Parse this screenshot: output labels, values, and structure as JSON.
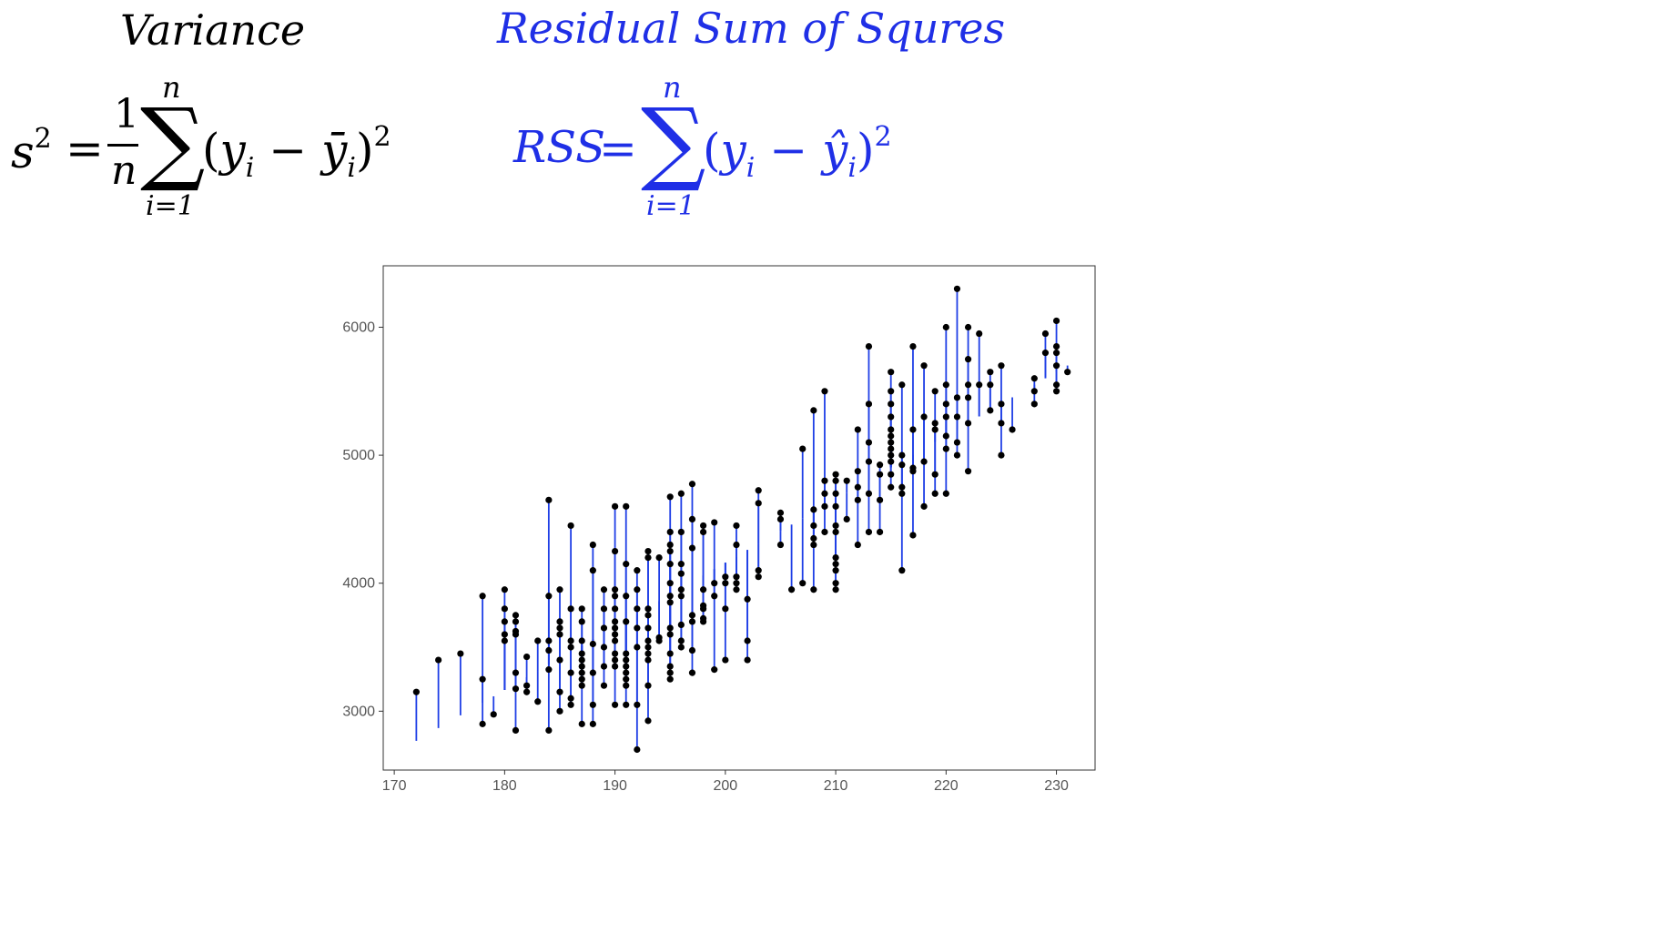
{
  "formulas": {
    "variance": {
      "label": "Variance",
      "lhs": "s",
      "lhs_sup": "2",
      "equals": "=",
      "frac_num": "1",
      "frac_den": "n",
      "sum_symbol": "∑",
      "sum_upper": "n",
      "sum_lower": "i=1",
      "open_paren": "(",
      "y": "y",
      "sub_i": "i",
      "minus": "−",
      "ybar": "ȳ",
      "sub_i2": "i",
      "close_paren": ")",
      "power": "2",
      "color": "#000000"
    },
    "rss": {
      "label": "Residual Sum of Squres",
      "lhs": "RSS",
      "equals": "=",
      "sum_symbol": "∑",
      "sum_upper": "n",
      "sum_lower": "i=1",
      "open_paren": "(",
      "y": "y",
      "sub_i": "i",
      "minus": "−",
      "yhat": "ŷ",
      "sub_i2": "i",
      "close_paren": ")",
      "power": "2",
      "color": "#1f2fe6"
    }
  },
  "chart_data": {
    "type": "scatter",
    "title": "",
    "xlabel": "",
    "ylabel": "",
    "xlim": [
      169,
      233.5
    ],
    "ylim": [
      2540,
      6480
    ],
    "x_ticks": [
      170,
      180,
      190,
      200,
      210,
      220,
      230
    ],
    "y_ticks": [
      3000,
      4000,
      5000,
      6000
    ],
    "grid": false,
    "point_color": "#000000",
    "residual_color": "#1f3fe6",
    "fitted_line": {
      "intercept": -5780,
      "slope": 49.7
    },
    "points": [
      [
        172,
        3150
      ],
      [
        174,
        3400
      ],
      [
        176,
        3450
      ],
      [
        178,
        3900
      ],
      [
        178,
        3250
      ],
      [
        178,
        2900
      ],
      [
        179,
        2975
      ],
      [
        180,
        3950
      ],
      [
        180,
        3800
      ],
      [
        180,
        3700
      ],
      [
        180,
        3600
      ],
      [
        180,
        3550
      ],
      [
        181,
        3750
      ],
      [
        181,
        3700
      ],
      [
        181,
        3625
      ],
      [
        181,
        3600
      ],
      [
        181,
        3300
      ],
      [
        181,
        3175
      ],
      [
        181,
        2850
      ],
      [
        182,
        3425
      ],
      [
        182,
        3200
      ],
      [
        182,
        3150
      ],
      [
        183,
        3550
      ],
      [
        183,
        3075
      ],
      [
        184,
        4650
      ],
      [
        184,
        3900
      ],
      [
        184,
        3550
      ],
      [
        184,
        3475
      ],
      [
        184,
        3325
      ],
      [
        184,
        2850
      ],
      [
        185,
        3950
      ],
      [
        185,
        3700
      ],
      [
        185,
        3650
      ],
      [
        185,
        3600
      ],
      [
        185,
        3400
      ],
      [
        185,
        3150
      ],
      [
        185,
        3000
      ],
      [
        186,
        4450
      ],
      [
        186,
        3800
      ],
      [
        186,
        3550
      ],
      [
        186,
        3500
      ],
      [
        186,
        3300
      ],
      [
        186,
        3100
      ],
      [
        186,
        3050
      ],
      [
        187,
        3800
      ],
      [
        187,
        3700
      ],
      [
        187,
        3550
      ],
      [
        187,
        3450
      ],
      [
        187,
        3400
      ],
      [
        187,
        3350
      ],
      [
        187,
        3300
      ],
      [
        187,
        3250
      ],
      [
        187,
        3200
      ],
      [
        187,
        2900
      ],
      [
        188,
        4300
      ],
      [
        188,
        4100
      ],
      [
        188,
        3525
      ],
      [
        188,
        3300
      ],
      [
        188,
        3050
      ],
      [
        188,
        2900
      ],
      [
        189,
        3950
      ],
      [
        189,
        3800
      ],
      [
        189,
        3650
      ],
      [
        189,
        3500
      ],
      [
        189,
        3350
      ],
      [
        189,
        3200
      ],
      [
        190,
        4600
      ],
      [
        190,
        4250
      ],
      [
        190,
        3950
      ],
      [
        190,
        3900
      ],
      [
        190,
        3800
      ],
      [
        190,
        3700
      ],
      [
        190,
        3650
      ],
      [
        190,
        3600
      ],
      [
        190,
        3550
      ],
      [
        190,
        3450
      ],
      [
        190,
        3400
      ],
      [
        190,
        3350
      ],
      [
        190,
        3050
      ],
      [
        191,
        4600
      ],
      [
        191,
        4150
      ],
      [
        191,
        3900
      ],
      [
        191,
        3700
      ],
      [
        191,
        3450
      ],
      [
        191,
        3400
      ],
      [
        191,
        3350
      ],
      [
        191,
        3300
      ],
      [
        191,
        3250
      ],
      [
        191,
        3200
      ],
      [
        191,
        3050
      ],
      [
        192,
        4100
      ],
      [
        192,
        3950
      ],
      [
        192,
        3800
      ],
      [
        192,
        3650
      ],
      [
        192,
        3500
      ],
      [
        192,
        3050
      ],
      [
        192,
        2700
      ],
      [
        193,
        4250
      ],
      [
        193,
        4200
      ],
      [
        193,
        3800
      ],
      [
        193,
        3750
      ],
      [
        193,
        3650
      ],
      [
        193,
        3550
      ],
      [
        193,
        3500
      ],
      [
        193,
        3450
      ],
      [
        193,
        3400
      ],
      [
        193,
        3200
      ],
      [
        193,
        2925
      ],
      [
        194,
        4200
      ],
      [
        194,
        3575
      ],
      [
        194,
        3550
      ],
      [
        195,
        4675
      ],
      [
        195,
        4400
      ],
      [
        195,
        4300
      ],
      [
        195,
        4250
      ],
      [
        195,
        4150
      ],
      [
        195,
        4000
      ],
      [
        195,
        3900
      ],
      [
        195,
        3850
      ],
      [
        195,
        3650
      ],
      [
        195,
        3600
      ],
      [
        195,
        3450
      ],
      [
        195,
        3350
      ],
      [
        195,
        3300
      ],
      [
        195,
        3250
      ],
      [
        196,
        4700
      ],
      [
        196,
        4400
      ],
      [
        196,
        4150
      ],
      [
        196,
        4075
      ],
      [
        196,
        3950
      ],
      [
        196,
        3900
      ],
      [
        196,
        3675
      ],
      [
        196,
        3550
      ],
      [
        196,
        3500
      ],
      [
        197,
        4775
      ],
      [
        197,
        4500
      ],
      [
        197,
        4275
      ],
      [
        197,
        3750
      ],
      [
        197,
        3700
      ],
      [
        197,
        3475
      ],
      [
        197,
        3300
      ],
      [
        198,
        4450
      ],
      [
        198,
        4400
      ],
      [
        198,
        3950
      ],
      [
        198,
        3825
      ],
      [
        198,
        3800
      ],
      [
        198,
        3725
      ],
      [
        198,
        3700
      ],
      [
        199,
        4475
      ],
      [
        199,
        4000
      ],
      [
        199,
        3900
      ],
      [
        199,
        3325
      ],
      [
        200,
        4050
      ],
      [
        200,
        4000
      ],
      [
        200,
        3800
      ],
      [
        200,
        3400
      ],
      [
        201,
        4450
      ],
      [
        201,
        4300
      ],
      [
        201,
        4050
      ],
      [
        201,
        4000
      ],
      [
        201,
        3950
      ],
      [
        202,
        3875
      ],
      [
        202,
        3550
      ],
      [
        202,
        3400
      ],
      [
        203,
        4725
      ],
      [
        203,
        4625
      ],
      [
        203,
        4100
      ],
      [
        203,
        4050
      ],
      [
        205,
        4550
      ],
      [
        205,
        4500
      ],
      [
        205,
        4300
      ],
      [
        206,
        3950
      ],
      [
        207,
        5050
      ],
      [
        207,
        4000
      ],
      [
        208,
        5350
      ],
      [
        208,
        4575
      ],
      [
        208,
        4450
      ],
      [
        208,
        4350
      ],
      [
        208,
        4300
      ],
      [
        208,
        3950
      ],
      [
        209,
        5500
      ],
      [
        209,
        4800
      ],
      [
        209,
        4700
      ],
      [
        209,
        4600
      ],
      [
        209,
        4400
      ],
      [
        210,
        4850
      ],
      [
        210,
        4800
      ],
      [
        210,
        4700
      ],
      [
        210,
        4600
      ],
      [
        210,
        4450
      ],
      [
        210,
        4400
      ],
      [
        210,
        4200
      ],
      [
        210,
        4150
      ],
      [
        210,
        4100
      ],
      [
        210,
        4000
      ],
      [
        210,
        3950
      ],
      [
        211,
        4800
      ],
      [
        211,
        4500
      ],
      [
        212,
        5200
      ],
      [
        212,
        4875
      ],
      [
        212,
        4750
      ],
      [
        212,
        4650
      ],
      [
        212,
        4300
      ],
      [
        213,
        5850
      ],
      [
        213,
        5400
      ],
      [
        213,
        5100
      ],
      [
        213,
        4950
      ],
      [
        213,
        4700
      ],
      [
        213,
        4400
      ],
      [
        214,
        4925
      ],
      [
        214,
        4850
      ],
      [
        214,
        4650
      ],
      [
        214,
        4400
      ],
      [
        215,
        5650
      ],
      [
        215,
        5500
      ],
      [
        215,
        5400
      ],
      [
        215,
        5300
      ],
      [
        215,
        5200
      ],
      [
        215,
        5150
      ],
      [
        215,
        5100
      ],
      [
        215,
        5050
      ],
      [
        215,
        5000
      ],
      [
        215,
        4950
      ],
      [
        215,
        4850
      ],
      [
        215,
        4750
      ],
      [
        216,
        5550
      ],
      [
        216,
        5000
      ],
      [
        216,
        4925
      ],
      [
        216,
        4750
      ],
      [
        216,
        4700
      ],
      [
        216,
        4100
      ],
      [
        217,
        5850
      ],
      [
        217,
        5200
      ],
      [
        217,
        4900
      ],
      [
        217,
        4875
      ],
      [
        217,
        4375
      ],
      [
        218,
        5700
      ],
      [
        218,
        5300
      ],
      [
        218,
        4950
      ],
      [
        218,
        4600
      ],
      [
        219,
        5500
      ],
      [
        219,
        5250
      ],
      [
        219,
        5200
      ],
      [
        219,
        4850
      ],
      [
        219,
        4700
      ],
      [
        220,
        6000
      ],
      [
        220,
        5550
      ],
      [
        220,
        5400
      ],
      [
        220,
        5300
      ],
      [
        220,
        5150
      ],
      [
        220,
        5050
      ],
      [
        220,
        4700
      ],
      [
        221,
        6300
      ],
      [
        221,
        5450
      ],
      [
        221,
        5300
      ],
      [
        221,
        5100
      ],
      [
        221,
        5000
      ],
      [
        222,
        6000
      ],
      [
        222,
        5750
      ],
      [
        222,
        5550
      ],
      [
        222,
        5450
      ],
      [
        222,
        5250
      ],
      [
        222,
        4875
      ],
      [
        223,
        5950
      ],
      [
        223,
        5550
      ],
      [
        224,
        5650
      ],
      [
        224,
        5550
      ],
      [
        224,
        5350
      ],
      [
        225,
        5700
      ],
      [
        225,
        5400
      ],
      [
        225,
        5250
      ],
      [
        225,
        5000
      ],
      [
        226,
        5200
      ],
      [
        228,
        5600
      ],
      [
        228,
        5500
      ],
      [
        228,
        5400
      ],
      [
        229,
        5950
      ],
      [
        229,
        5800
      ],
      [
        230,
        6050
      ],
      [
        230,
        5850
      ],
      [
        230,
        5800
      ],
      [
        230,
        5700
      ],
      [
        230,
        5550
      ],
      [
        230,
        5500
      ],
      [
        231,
        5650
      ]
    ]
  }
}
